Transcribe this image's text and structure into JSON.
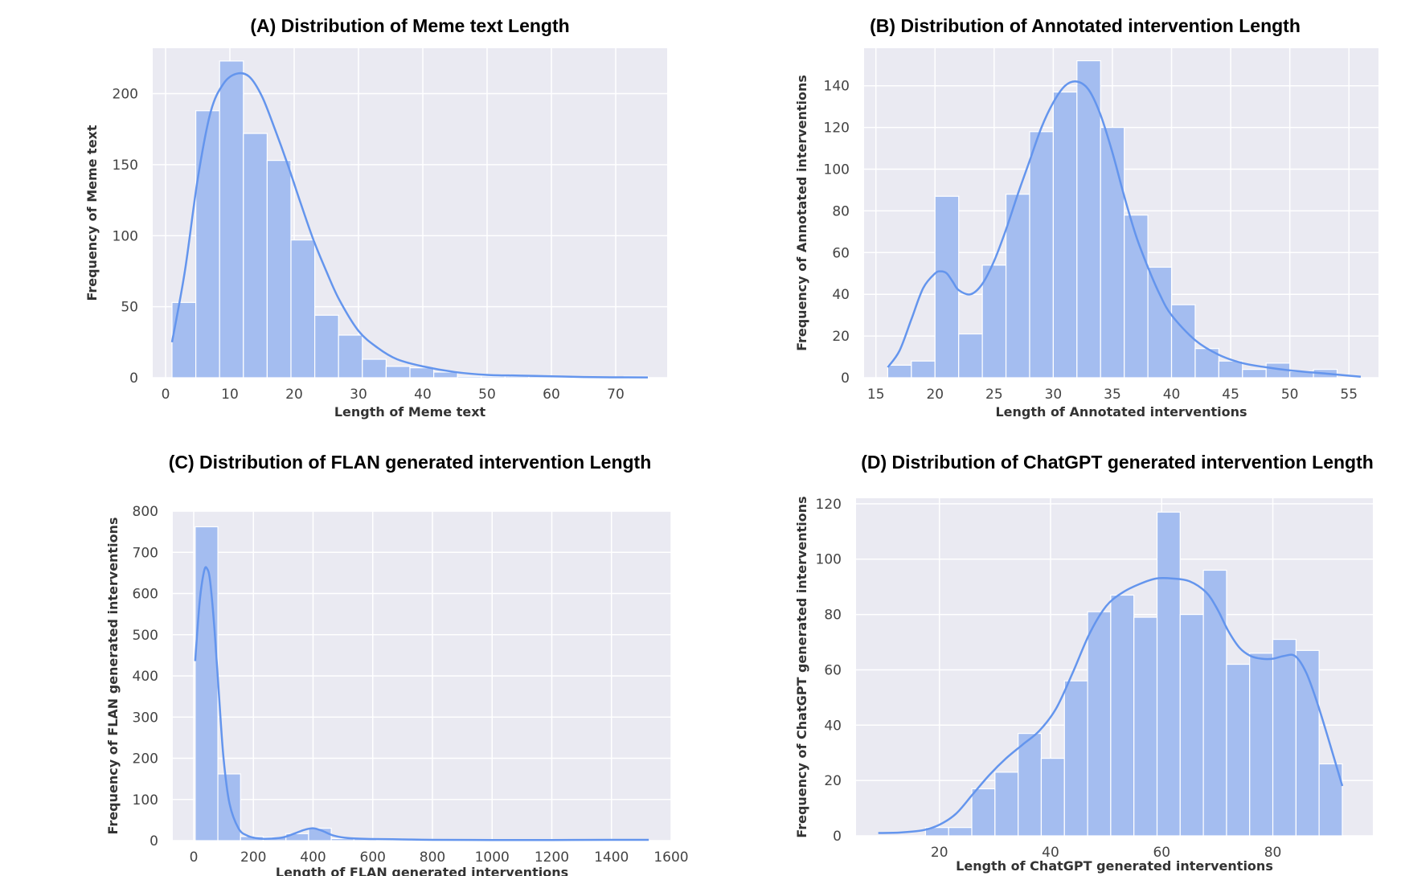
{
  "figure": {
    "accent_color": "#6495ED",
    "bar_fill": "#a4bdf0",
    "grid_background": "#eaeaf2"
  },
  "chart_data": [
    {
      "type": "bar",
      "title": "(A) Distribution of Meme text Length",
      "xlabel": "Length of Meme text",
      "ylabel": "Frequency of Meme text",
      "xlim": [
        -2,
        78
      ],
      "ylim": [
        0,
        232
      ],
      "xticks": [
        0,
        10,
        20,
        30,
        40,
        50,
        60,
        70
      ],
      "yticks": [
        0,
        50,
        100,
        150,
        200
      ],
      "bins": {
        "edges": [
          1,
          4.7,
          8.4,
          12.1,
          15.8,
          19.5,
          23.2,
          26.9,
          30.6,
          34.3,
          38,
          41.7,
          45.4,
          49.1,
          52.8,
          56.5,
          60.2,
          63.9,
          67.6,
          71.3,
          75
        ],
        "counts": [
          53,
          188,
          223,
          172,
          153,
          97,
          44,
          30,
          13,
          8,
          7,
          4,
          1,
          1,
          1,
          1,
          0,
          0,
          0,
          1
        ]
      },
      "kde": {
        "x": [
          1,
          3,
          5,
          7,
          9,
          11,
          13,
          15,
          17,
          19,
          21,
          23,
          25,
          27,
          30,
          33,
          36,
          40,
          45,
          50,
          55,
          60,
          65,
          70,
          75
        ],
        "y": [
          25,
          75,
          140,
          187,
          207,
          214,
          212,
          198,
          175,
          150,
          123,
          97,
          75,
          55,
          33,
          21,
          13,
          8,
          4,
          2,
          1.5,
          1,
          0.5,
          0.3,
          0.2
        ]
      },
      "grid": true
    },
    {
      "type": "bar",
      "title": "(B) Distribution of Annotated intervention Length",
      "xlabel": "Length of Annotated interventions",
      "ylabel": "Frequency of Annotated interventions",
      "xlim": [
        14,
        57.5
      ],
      "ylim": [
        0,
        158
      ],
      "xticks": [
        15,
        20,
        25,
        30,
        35,
        40,
        45,
        50,
        55
      ],
      "yticks": [
        0,
        20,
        40,
        60,
        80,
        100,
        120,
        140
      ],
      "bins": {
        "edges": [
          16,
          18,
          20,
          22,
          24,
          26,
          28,
          30,
          32,
          34,
          36,
          38,
          40,
          42,
          44,
          46,
          48,
          50,
          52,
          54
        ],
        "counts": [
          6,
          8,
          87,
          21,
          54,
          88,
          118,
          137,
          152,
          120,
          78,
          53,
          35,
          14,
          8,
          4,
          7,
          3,
          4
        ]
      },
      "kde": {
        "x": [
          16,
          17,
          18,
          19,
          20,
          20.5,
          21,
          21.5,
          22,
          23,
          24,
          25,
          26,
          27,
          28,
          29,
          30,
          31,
          32,
          33,
          34,
          35,
          36,
          37,
          38,
          39,
          40,
          42,
          44,
          46,
          48,
          50,
          52,
          54,
          56
        ],
        "y": [
          5,
          13,
          28,
          43,
          50,
          51,
          50,
          46,
          42,
          40,
          45,
          56,
          71,
          88,
          104,
          120,
          132,
          140,
          142,
          138,
          126,
          108,
          87,
          68,
          53,
          40,
          30,
          18,
          11,
          7,
          5,
          3.5,
          2.5,
          1.5,
          0.5
        ]
      },
      "grid": true
    },
    {
      "type": "bar",
      "title": "(C) Distribution of FLAN generated intervention Length",
      "xlabel": "Length of FLAN generated interventions",
      "ylabel": "Frequency of FLAN generated interventions",
      "xlim": [
        -70,
        1600
      ],
      "ylim": [
        0,
        800
      ],
      "xticks": [
        0,
        200,
        400,
        600,
        800,
        1000,
        1200,
        1400,
        1600
      ],
      "yticks": [
        0,
        100,
        200,
        300,
        400,
        500,
        600,
        700,
        800
      ],
      "bins": {
        "edges": [
          5,
          81,
          157,
          233,
          309,
          385,
          461,
          537,
          613,
          689,
          765,
          841,
          917,
          993,
          1069,
          1145,
          1221,
          1297,
          1373,
          1449,
          1525
        ],
        "counts": [
          762,
          162,
          10,
          8,
          17,
          30,
          5,
          4,
          2,
          1,
          1,
          1,
          1,
          1,
          0,
          0,
          0,
          0,
          0,
          2
        ]
      },
      "kde": {
        "x": [
          5,
          20,
          35,
          45,
          55,
          70,
          85,
          100,
          120,
          150,
          180,
          220,
          260,
          300,
          340,
          370,
          400,
          430,
          470,
          520,
          600,
          700,
          800,
          1000,
          1200,
          1400,
          1525
        ],
        "y": [
          436,
          580,
          655,
          660,
          630,
          510,
          350,
          200,
          90,
          30,
          12,
          5,
          5,
          8,
          18,
          26,
          30,
          24,
          12,
          6,
          4,
          3,
          2,
          1.5,
          1.5,
          2,
          2
        ]
      },
      "grid": true
    },
    {
      "type": "bar",
      "title": "(D) Distribution of ChatGPT generated intervention Length",
      "xlabel": "Length of ChatGPT generated interventions",
      "ylabel": "Frequency of ChatGPT generated interventions",
      "xlim": [
        5,
        98
      ],
      "ylim": [
        0,
        122
      ],
      "xticks": [
        20,
        40,
        60,
        80
      ],
      "yticks": [
        0,
        20,
        40,
        60,
        80,
        100,
        120
      ],
      "bins": {
        "edges": [
          17.5,
          21.67,
          25.83,
          30,
          34.17,
          38.33,
          42.5,
          46.67,
          50.83,
          55,
          59.17,
          63.33,
          67.5,
          71.67,
          75.83,
          80,
          84.17,
          88.33,
          92.5
        ],
        "counts": [
          3,
          3,
          17,
          23,
          37,
          28,
          56,
          81,
          87,
          79,
          117,
          80,
          96,
          62,
          66,
          71,
          67,
          26
        ]
      },
      "kde": {
        "x": [
          9,
          13,
          17,
          20,
          23,
          26,
          29,
          32,
          35,
          38,
          41,
          44,
          47,
          50,
          53,
          56,
          59,
          62,
          65,
          68,
          70,
          72,
          74,
          76,
          78,
          80,
          82,
          84,
          86,
          88,
          90,
          92.5
        ],
        "y": [
          1,
          1.2,
          2,
          4,
          8,
          15,
          22,
          28,
          33,
          38,
          46,
          59,
          73,
          83,
          88,
          91,
          93,
          93,
          92,
          88,
          82,
          74,
          68,
          65,
          64,
          64,
          65,
          65,
          59,
          48,
          35,
          18
        ]
      },
      "grid": true
    }
  ]
}
